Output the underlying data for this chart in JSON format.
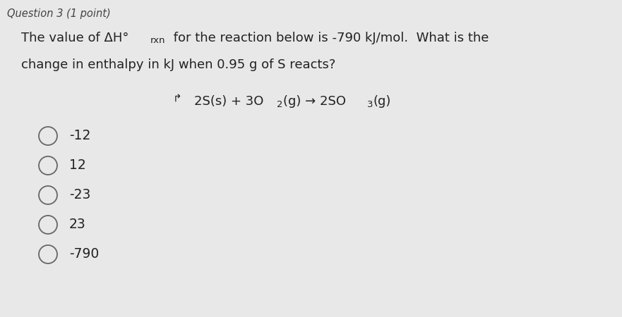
{
  "header": "Question 3 (1 point)",
  "question_line1a": "The value of ΔH°",
  "question_line1b": "rxn",
  "question_line1c": " for the reaction below is -790 kJ/mol.  What is the",
  "question_line2": "change in enthalpy in kJ when 0.95 g of S reacts?",
  "choices": [
    "-12",
    "12",
    "-23",
    "23",
    "-790"
  ],
  "bg_color": "#e8e8e8",
  "text_color": "#222222",
  "header_color": "#444444",
  "circle_color": "#666666",
  "font_size_header": 10.5,
  "font_size_question": 13,
  "font_size_rxn_sub": 9.5,
  "font_size_reaction": 13,
  "font_size_sub": 9.5,
  "font_size_choices": 13.5
}
